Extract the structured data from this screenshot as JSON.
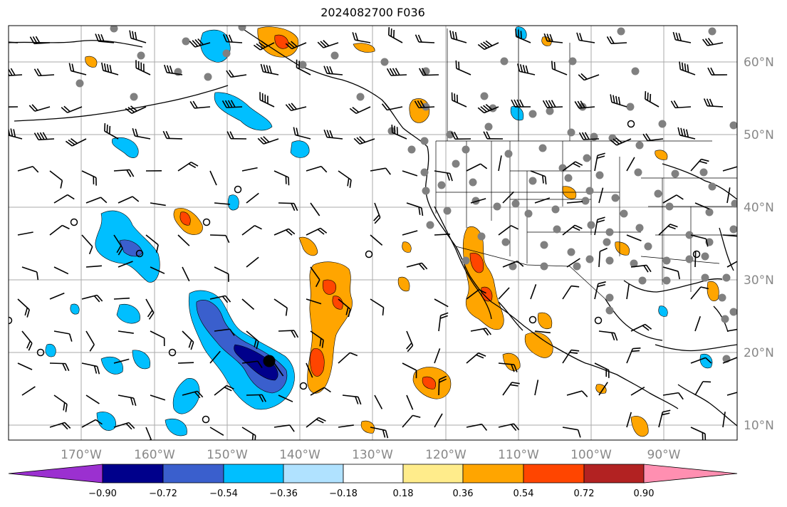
{
  "title": "2024082700 F036",
  "map": {
    "lon_labels": [
      "170°W",
      "160°W",
      "150°W",
      "140°W",
      "130°W",
      "120°W",
      "110°W",
      "100°W",
      "90°W"
    ],
    "lat_labels": [
      "60°N",
      "50°N",
      "40°N",
      "30°N",
      "20°N",
      "10°N"
    ],
    "lon_range": [
      -178,
      -78
    ],
    "lat_range": [
      8,
      65
    ],
    "colors": {
      "coast": "#000000",
      "grid": "#aaaaaa",
      "station": "#808080"
    }
  },
  "colorbar": {
    "labels": [
      "−0.90",
      "−0.72",
      "−0.54",
      "−0.36",
      "−0.18",
      "0.18",
      "0.36",
      "0.54",
      "0.72",
      "0.90"
    ],
    "colors": [
      "#9b30d0",
      "#00008b",
      "#3a5fcd",
      "#00bfff",
      "#b0e2ff",
      "#ffffff",
      "#ffec8b",
      "#ffa500",
      "#ff4500",
      "#b22222",
      "#ff8fb1"
    ]
  }
}
